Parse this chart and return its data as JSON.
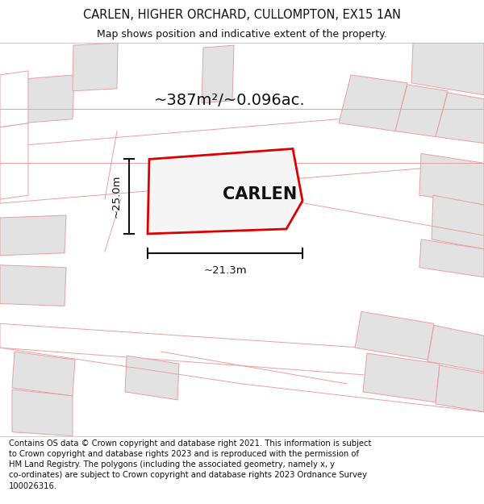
{
  "title_line1": "CARLEN, HIGHER ORCHARD, CULLOMPTON, EX15 1AN",
  "title_line2": "Map shows position and indicative extent of the property.",
  "area_text": "~387m²/~0.096ac.",
  "property_label": "CARLEN",
  "dim_horizontal": "~21.3m",
  "dim_vertical": "~25.0m",
  "footer_text": "Contains OS data © Crown copyright and database right 2021. This information is subject\nto Crown copyright and database rights 2023 and is reproduced with the permission of\nHM Land Registry. The polygons (including the associated geometry, namely x, y\nco-ordinates) are subject to Crown copyright and database rights 2023 Ordnance Survey\n100026316.",
  "bg_color": "#ffffff",
  "map_bg": "#ffffff",
  "property_polygon_color": "#dd0000",
  "property_fill_color": "#f5f5f5",
  "neighbor_line_color": "#e8a0a0",
  "neighbor_fill_color": "#e2e2e2",
  "road_line_color": "#e8a0a0",
  "road_fill_color": "#ffffff",
  "dim_line_color": "#111111",
  "title_color": "#111111",
  "label_color": "#111111",
  "area_color": "#111111",
  "footer_color": "#111111"
}
